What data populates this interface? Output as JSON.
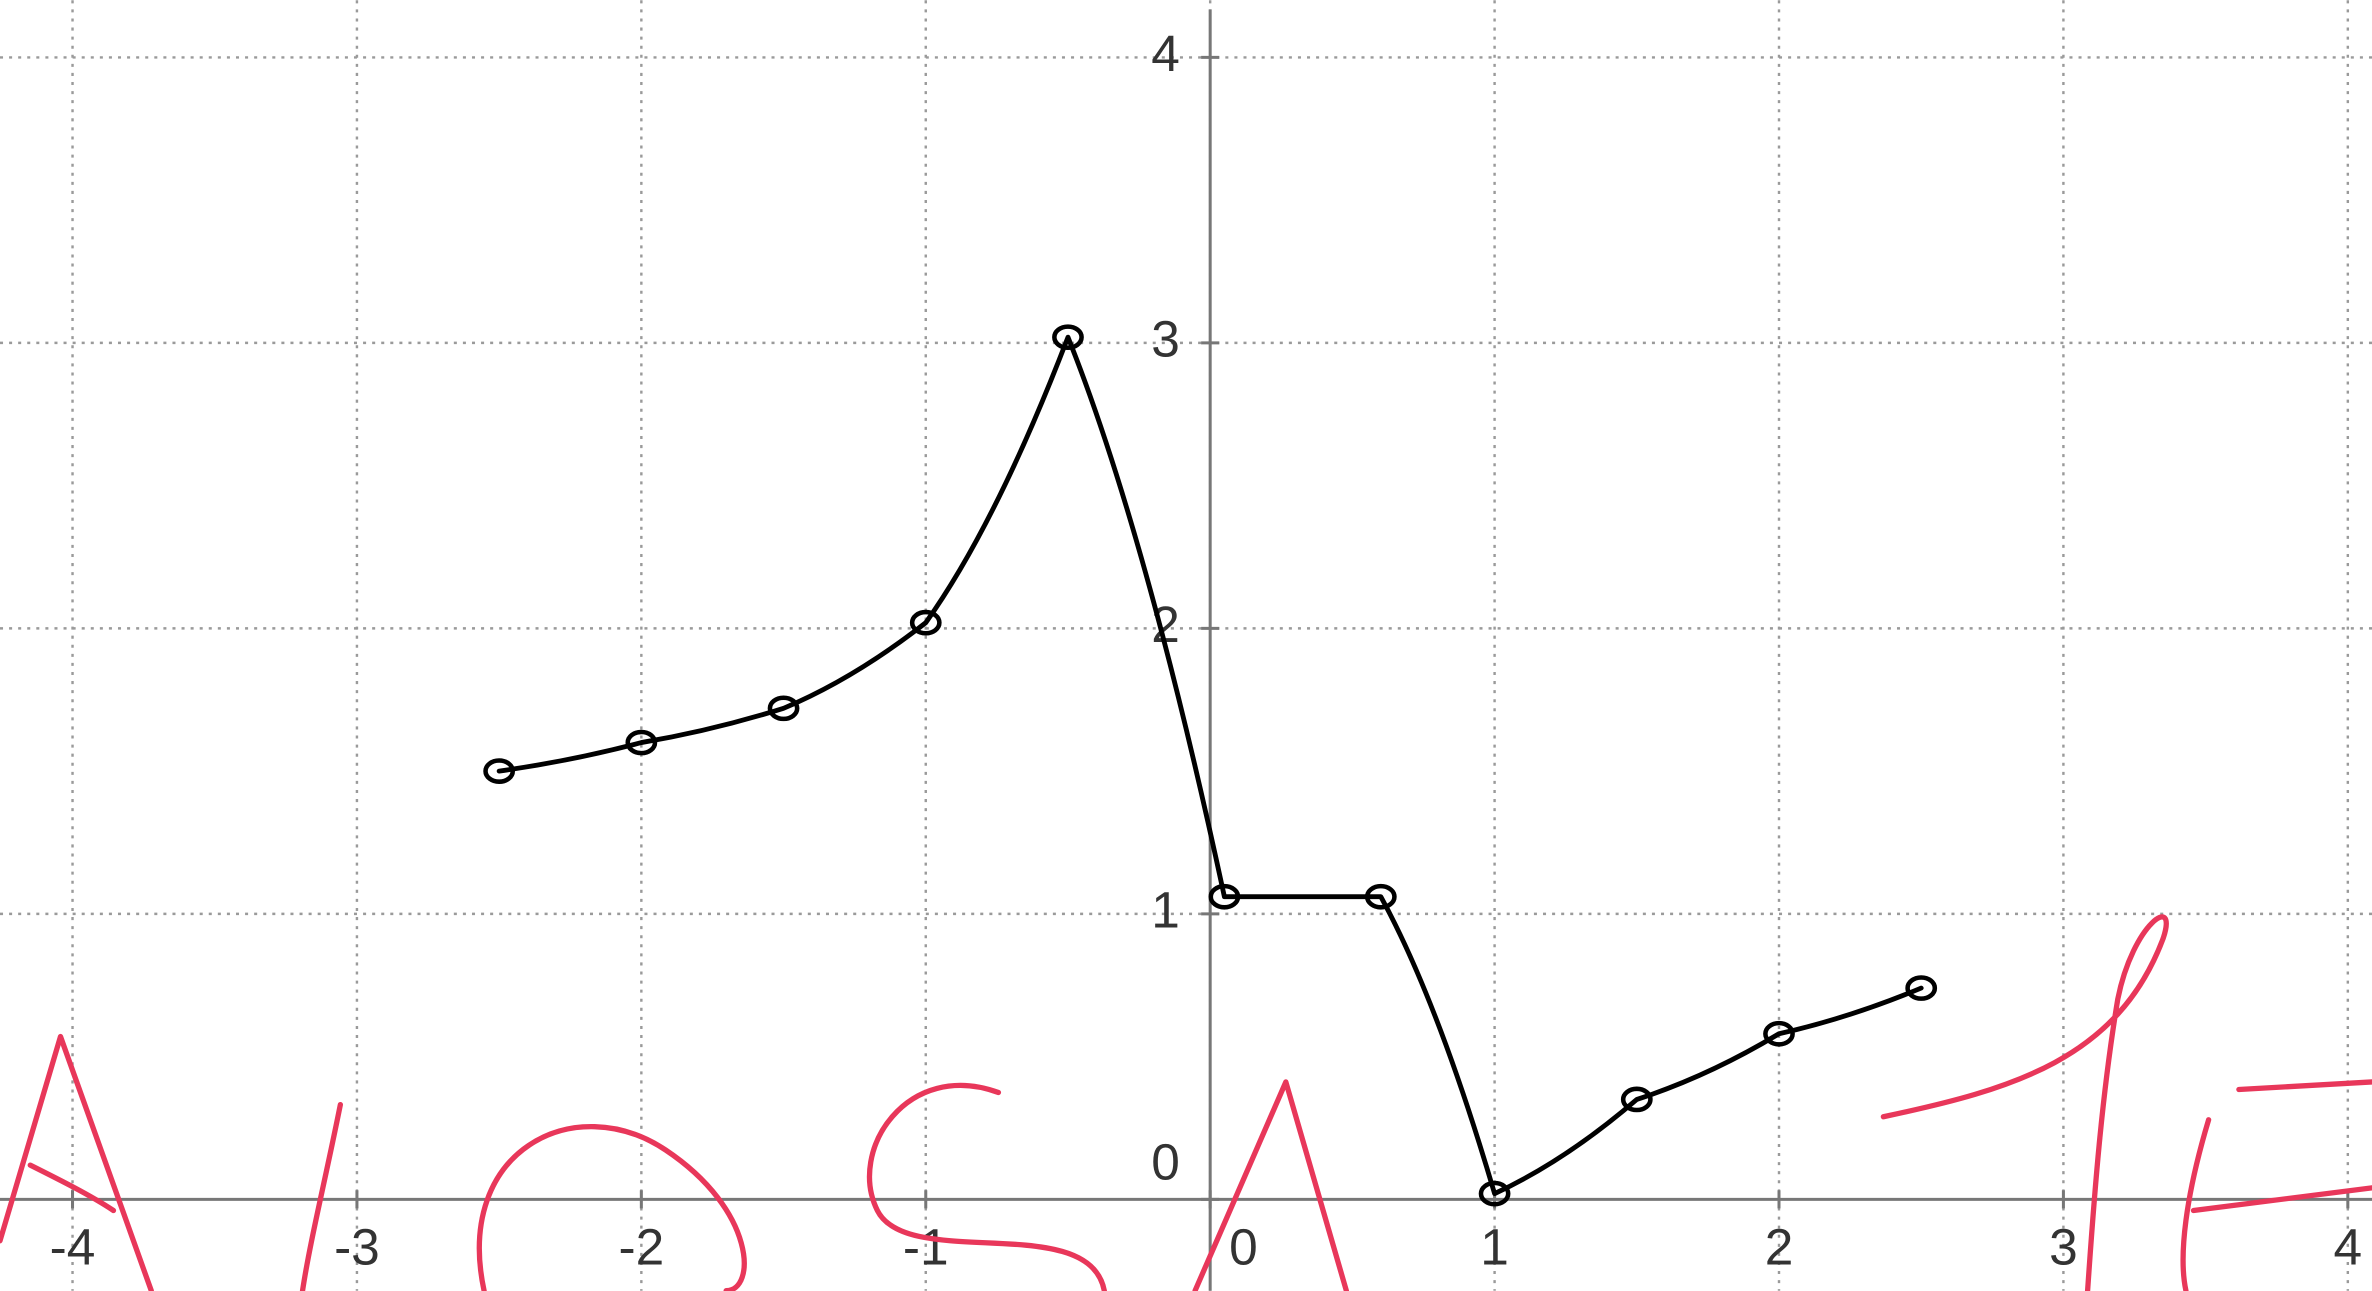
{
  "chart_data": {
    "type": "line",
    "x": [
      -2.5,
      -2,
      -1.5,
      -1,
      -0.5,
      0.05,
      0.6,
      1,
      1.5,
      2,
      2.5
    ],
    "values": [
      1.5,
      1.6,
      1.72,
      2.02,
      3.02,
      1.06,
      1.06,
      0.02,
      0.35,
      0.58,
      0.74
    ],
    "color": "#000000",
    "xlim": [
      -4.255,
      4.085
    ],
    "ylim": [
      -0.32,
      4.2
    ],
    "xticks": [
      -4,
      -3,
      -2,
      -1,
      0,
      1,
      2,
      3,
      4
    ],
    "yticks": [
      0,
      1,
      2,
      3,
      4
    ],
    "grid": true
  }
}
